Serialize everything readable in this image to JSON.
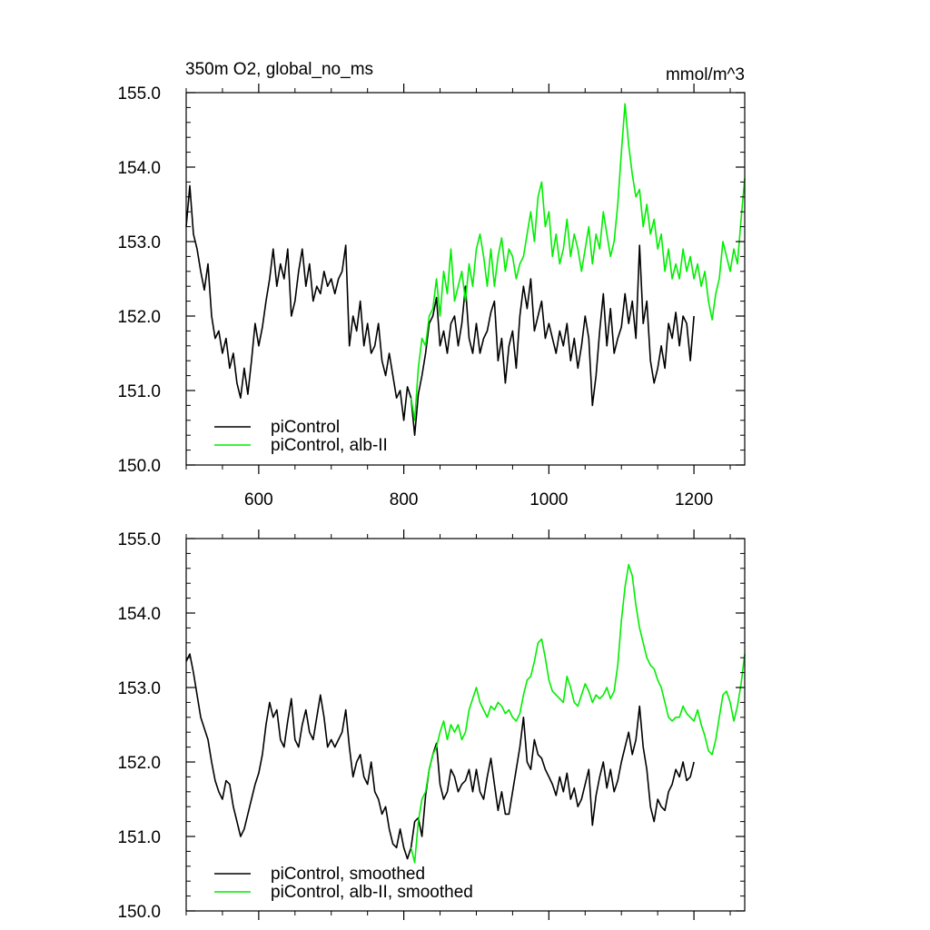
{
  "colors": {
    "control": "#000000",
    "alb": "#00ee00",
    "axis": "#000000",
    "background": "#ffffff"
  },
  "chart_data": [
    {
      "type": "line",
      "title": "350m O2, global_no_ms",
      "units": "mmol/m^3",
      "xlim": [
        500,
        1270
      ],
      "ylim": [
        150.0,
        155.0
      ],
      "xticks": [
        600,
        800,
        1000,
        1200
      ],
      "xtick_labels": [
        "600",
        "800",
        "1000",
        "1200"
      ],
      "yticks": [
        150.0,
        151.0,
        152.0,
        153.0,
        154.0,
        155.0
      ],
      "ytick_labels": [
        "150.0",
        "151.0",
        "152.0",
        "153.0",
        "154.0",
        "155.0"
      ],
      "grid": false,
      "legend_position": "bottom-left",
      "series": [
        {
          "name": "piControl",
          "color": "#000000",
          "x": [
            500,
            505,
            510,
            515,
            520,
            525,
            530,
            535,
            540,
            545,
            550,
            555,
            560,
            565,
            570,
            575,
            580,
            585,
            590,
            595,
            600,
            605,
            610,
            615,
            620,
            625,
            630,
            635,
            640,
            645,
            650,
            655,
            660,
            665,
            670,
            675,
            680,
            685,
            690,
            695,
            700,
            705,
            710,
            715,
            720,
            725,
            730,
            735,
            740,
            745,
            750,
            755,
            760,
            765,
            770,
            775,
            780,
            785,
            790,
            795,
            800,
            805,
            810,
            815,
            820,
            825,
            830,
            835,
            840,
            845,
            850,
            855,
            860,
            865,
            870,
            875,
            880,
            885,
            890,
            895,
            900,
            905,
            910,
            915,
            920,
            925,
            930,
            935,
            940,
            945,
            950,
            955,
            960,
            965,
            970,
            975,
            980,
            985,
            990,
            995,
            1000,
            1005,
            1010,
            1015,
            1020,
            1025,
            1030,
            1035,
            1040,
            1045,
            1050,
            1055,
            1060,
            1065,
            1070,
            1075,
            1080,
            1085,
            1090,
            1095,
            1100,
            1105,
            1110,
            1115,
            1120,
            1125,
            1130,
            1135,
            1140,
            1145,
            1150,
            1155,
            1160,
            1165,
            1170,
            1175,
            1180,
            1185,
            1190,
            1195,
            1200
          ],
          "y": [
            153.2,
            153.75,
            153.1,
            152.9,
            152.6,
            152.35,
            152.7,
            152.0,
            151.7,
            151.8,
            151.5,
            151.7,
            151.3,
            151.5,
            151.1,
            150.9,
            151.3,
            150.95,
            151.4,
            151.9,
            151.6,
            151.85,
            152.2,
            152.5,
            152.9,
            152.4,
            152.7,
            152.5,
            152.9,
            152.0,
            152.2,
            152.6,
            152.9,
            152.4,
            152.7,
            152.2,
            152.4,
            152.3,
            152.6,
            152.4,
            152.5,
            152.3,
            152.5,
            152.6,
            152.95,
            151.6,
            152.0,
            151.8,
            152.2,
            151.6,
            151.9,
            151.5,
            151.6,
            151.9,
            151.4,
            151.2,
            151.5,
            151.2,
            150.9,
            151.0,
            150.6,
            151.05,
            150.9,
            150.4,
            150.95,
            151.2,
            151.5,
            151.9,
            152.0,
            152.25,
            151.6,
            151.8,
            151.5,
            151.9,
            152.0,
            151.6,
            151.9,
            152.4,
            151.7,
            151.5,
            151.9,
            151.5,
            151.7,
            151.8,
            152.05,
            152.2,
            151.4,
            151.7,
            151.1,
            151.6,
            151.8,
            151.3,
            152.0,
            152.4,
            152.1,
            152.5,
            151.8,
            152.0,
            152.2,
            151.7,
            151.9,
            151.7,
            151.5,
            151.8,
            151.6,
            151.9,
            151.4,
            151.7,
            151.3,
            151.6,
            152.0,
            151.7,
            150.8,
            151.2,
            151.8,
            152.3,
            151.6,
            152.1,
            151.5,
            151.7,
            151.85,
            152.3,
            151.9,
            152.2,
            151.7,
            152.95,
            151.9,
            152.2,
            151.4,
            151.1,
            151.3,
            151.6,
            151.3,
            151.9,
            151.7,
            152.05,
            151.6,
            152.0,
            151.9,
            151.4,
            152.0
          ],
          "stroke_width": 1.6
        },
        {
          "name": "piControl, alb-II",
          "color": "#00ee00",
          "x": [
            810,
            815,
            820,
            825,
            830,
            835,
            840,
            845,
            850,
            855,
            860,
            865,
            870,
            875,
            880,
            885,
            890,
            895,
            900,
            905,
            910,
            915,
            920,
            925,
            930,
            935,
            940,
            945,
            950,
            955,
            960,
            965,
            970,
            975,
            980,
            985,
            990,
            995,
            1000,
            1005,
            1010,
            1015,
            1020,
            1025,
            1030,
            1035,
            1040,
            1045,
            1050,
            1055,
            1060,
            1065,
            1070,
            1075,
            1080,
            1085,
            1090,
            1095,
            1100,
            1105,
            1110,
            1115,
            1120,
            1125,
            1130,
            1135,
            1140,
            1145,
            1150,
            1155,
            1160,
            1165,
            1170,
            1175,
            1180,
            1185,
            1190,
            1195,
            1200,
            1205,
            1210,
            1215,
            1220,
            1225,
            1230,
            1235,
            1240,
            1245,
            1250,
            1255,
            1260,
            1265,
            1270
          ],
          "y": [
            150.9,
            150.6,
            151.3,
            151.7,
            151.6,
            152.0,
            152.1,
            152.5,
            152.0,
            152.6,
            152.3,
            152.9,
            152.2,
            152.4,
            152.6,
            152.2,
            152.7,
            152.4,
            152.9,
            153.1,
            152.8,
            152.4,
            152.9,
            152.4,
            152.8,
            153.05,
            152.6,
            152.9,
            152.8,
            152.5,
            152.7,
            152.8,
            153.1,
            153.4,
            153.0,
            153.6,
            153.8,
            153.2,
            153.4,
            152.8,
            153.1,
            152.7,
            152.9,
            153.3,
            152.8,
            153.1,
            152.9,
            152.6,
            152.9,
            153.2,
            152.7,
            153.1,
            152.9,
            153.4,
            153.1,
            152.8,
            153.0,
            153.5,
            154.2,
            154.85,
            154.3,
            153.9,
            153.6,
            153.7,
            153.2,
            153.5,
            153.1,
            153.3,
            152.9,
            153.1,
            152.6,
            152.9,
            152.5,
            152.7,
            152.5,
            152.9,
            152.6,
            152.8,
            152.5,
            152.7,
            152.4,
            152.6,
            152.2,
            151.95,
            152.3,
            152.5,
            153.0,
            152.8,
            152.6,
            152.9,
            152.7,
            153.3,
            153.85
          ],
          "stroke_width": 1.6
        }
      ],
      "legend": [
        "piControl",
        "piControl, alb-II"
      ]
    },
    {
      "type": "line",
      "title": "",
      "xlim": [
        500,
        1270
      ],
      "ylim": [
        150.0,
        155.0
      ],
      "xticks": [
        600,
        800,
        1000,
        1200
      ],
      "yticks": [
        150.0,
        151.0,
        152.0,
        153.0,
        154.0,
        155.0
      ],
      "ytick_labels": [
        "150.0",
        "151.0",
        "152.0",
        "153.0",
        "154.0",
        "155.0"
      ],
      "grid": false,
      "legend_position": "bottom-left",
      "series": [
        {
          "name": "piControl, smoothed",
          "color": "#000000",
          "x": [
            500,
            505,
            510,
            515,
            520,
            525,
            530,
            535,
            540,
            545,
            550,
            555,
            560,
            565,
            570,
            575,
            580,
            585,
            590,
            595,
            600,
            605,
            610,
            615,
            620,
            625,
            630,
            635,
            640,
            645,
            650,
            655,
            660,
            665,
            670,
            675,
            680,
            685,
            690,
            695,
            700,
            705,
            710,
            715,
            720,
            725,
            730,
            735,
            740,
            745,
            750,
            755,
            760,
            765,
            770,
            775,
            780,
            785,
            790,
            795,
            800,
            805,
            810,
            815,
            820,
            825,
            830,
            835,
            840,
            845,
            850,
            855,
            860,
            865,
            870,
            875,
            880,
            885,
            890,
            895,
            900,
            905,
            910,
            915,
            920,
            925,
            930,
            935,
            940,
            945,
            950,
            955,
            960,
            965,
            970,
            975,
            980,
            985,
            990,
            995,
            1000,
            1005,
            1010,
            1015,
            1020,
            1025,
            1030,
            1035,
            1040,
            1045,
            1050,
            1055,
            1060,
            1065,
            1070,
            1075,
            1080,
            1085,
            1090,
            1095,
            1100,
            1105,
            1110,
            1115,
            1120,
            1125,
            1130,
            1135,
            1140,
            1145,
            1150,
            1155,
            1160,
            1165,
            1170,
            1175,
            1180,
            1185,
            1190,
            1195,
            1200
          ],
          "y": [
            153.35,
            153.45,
            153.2,
            152.9,
            152.6,
            152.45,
            152.3,
            152.0,
            151.75,
            151.6,
            151.5,
            151.75,
            151.7,
            151.4,
            151.2,
            151.0,
            151.1,
            151.3,
            151.5,
            151.7,
            151.85,
            152.1,
            152.5,
            152.8,
            152.6,
            152.7,
            152.3,
            152.2,
            152.55,
            152.85,
            152.3,
            152.2,
            152.5,
            152.7,
            152.4,
            152.3,
            152.6,
            152.9,
            152.6,
            152.2,
            152.3,
            152.2,
            152.3,
            152.4,
            152.7,
            152.2,
            151.8,
            152.0,
            152.1,
            151.8,
            151.7,
            152.0,
            151.6,
            151.5,
            151.3,
            151.4,
            151.1,
            150.9,
            150.85,
            151.1,
            150.85,
            150.7,
            150.85,
            151.2,
            151.25,
            151.0,
            151.55,
            151.9,
            152.1,
            152.25,
            151.7,
            151.5,
            151.6,
            151.9,
            151.8,
            151.6,
            151.7,
            151.75,
            151.9,
            151.6,
            151.9,
            151.6,
            151.5,
            151.8,
            152.05,
            151.7,
            151.35,
            151.6,
            151.3,
            151.3,
            151.6,
            151.9,
            152.2,
            152.6,
            152.0,
            151.9,
            152.3,
            152.1,
            152.05,
            151.9,
            151.8,
            151.7,
            151.55,
            151.8,
            151.6,
            151.85,
            151.5,
            151.65,
            151.4,
            151.5,
            151.7,
            151.9,
            151.15,
            151.55,
            151.8,
            152.0,
            151.65,
            151.9,
            151.6,
            151.75,
            152.0,
            152.2,
            152.4,
            152.1,
            152.3,
            152.75,
            152.2,
            151.9,
            151.4,
            151.2,
            151.5,
            151.4,
            151.35,
            151.6,
            151.7,
            151.9,
            151.8,
            152.0,
            151.75,
            151.8,
            152.0
          ],
          "stroke_width": 1.6
        },
        {
          "name": "piControl, alb-II, smoothed",
          "color": "#00ee00",
          "x": [
            810,
            815,
            820,
            825,
            830,
            835,
            840,
            845,
            850,
            855,
            860,
            865,
            870,
            875,
            880,
            885,
            890,
            895,
            900,
            905,
            910,
            915,
            920,
            925,
            930,
            935,
            940,
            945,
            950,
            955,
            960,
            965,
            970,
            975,
            980,
            985,
            990,
            995,
            1000,
            1005,
            1010,
            1015,
            1020,
            1025,
            1030,
            1035,
            1040,
            1045,
            1050,
            1055,
            1060,
            1065,
            1070,
            1075,
            1080,
            1085,
            1090,
            1095,
            1100,
            1105,
            1110,
            1115,
            1120,
            1125,
            1130,
            1135,
            1140,
            1145,
            1150,
            1155,
            1160,
            1165,
            1170,
            1175,
            1180,
            1185,
            1190,
            1195,
            1200,
            1205,
            1210,
            1215,
            1220,
            1225,
            1230,
            1235,
            1240,
            1245,
            1250,
            1255,
            1260,
            1265,
            1270
          ],
          "y": [
            150.85,
            150.65,
            151.2,
            151.5,
            151.6,
            151.9,
            152.1,
            152.2,
            152.4,
            152.55,
            152.3,
            152.5,
            152.4,
            152.5,
            152.3,
            152.4,
            152.7,
            152.85,
            153.0,
            152.8,
            152.7,
            152.6,
            152.75,
            152.7,
            152.8,
            152.75,
            152.65,
            152.7,
            152.6,
            152.55,
            152.65,
            152.9,
            153.1,
            153.15,
            153.35,
            153.6,
            153.65,
            153.4,
            153.1,
            152.95,
            152.9,
            152.85,
            152.8,
            153.15,
            153.0,
            152.8,
            152.75,
            152.9,
            153.05,
            152.95,
            152.8,
            152.9,
            152.85,
            152.9,
            153.0,
            152.85,
            152.95,
            153.3,
            153.9,
            154.35,
            154.65,
            154.5,
            154.1,
            153.8,
            153.6,
            153.4,
            153.3,
            153.25,
            153.1,
            153.0,
            152.8,
            152.6,
            152.55,
            152.6,
            152.6,
            152.75,
            152.65,
            152.6,
            152.55,
            152.7,
            152.5,
            152.35,
            152.15,
            152.1,
            152.3,
            152.6,
            152.9,
            152.95,
            152.8,
            152.55,
            152.75,
            153.05,
            153.45
          ],
          "stroke_width": 1.6
        }
      ],
      "legend": [
        "piControl, smoothed",
        "piControl, alb-II, smoothed"
      ]
    }
  ]
}
